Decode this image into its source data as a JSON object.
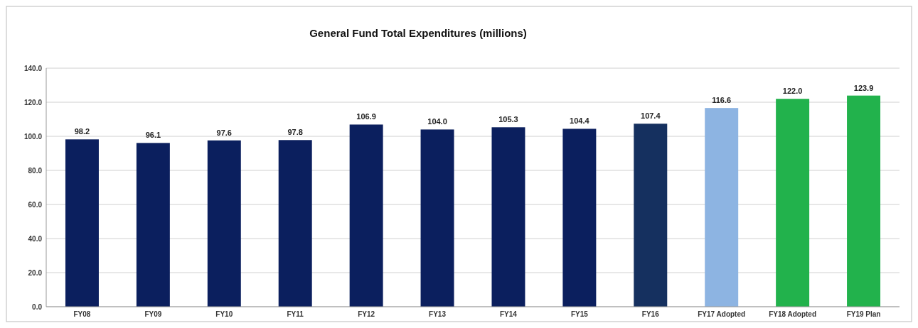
{
  "chart_data": {
    "type": "bar",
    "title": "General Fund Total Expenditures  (millions)",
    "categories": [
      "FY08",
      "FY09",
      "FY10",
      "FY11",
      "FY12",
      "FY13",
      "FY14",
      "FY15",
      "FY16",
      "FY17 Adopted",
      "FY18 Adopted",
      "FY19 Plan"
    ],
    "values": [
      98.2,
      96.1,
      97.6,
      97.8,
      106.9,
      104.0,
      105.3,
      104.4,
      107.4,
      116.6,
      122.0,
      123.9
    ],
    "value_labels": [
      "98.2",
      "96.1",
      "97.6",
      "97.8",
      "106.9",
      "104.0",
      "105.3",
      "104.4",
      "107.4",
      "116.6",
      "122.0",
      "123.9"
    ],
    "colors": [
      "#0b1f5e",
      "#0b1f5e",
      "#0b1f5e",
      "#0b1f5e",
      "#0b1f5e",
      "#0b1f5e",
      "#0b1f5e",
      "#0b1f5e",
      "#15305f",
      "#8db4e2",
      "#22b24c",
      "#22b24c"
    ],
    "ylim": [
      0,
      140
    ],
    "yticks": [
      {
        "value": 0,
        "label": "0.0"
      },
      {
        "value": 20,
        "label": "20.0"
      },
      {
        "value": 40,
        "label": "40.0"
      },
      {
        "value": 60,
        "label": "60.0"
      },
      {
        "value": 80,
        "label": "80.0"
      },
      {
        "value": 100,
        "label": "100.0"
      },
      {
        "value": 120,
        "label": "120.0"
      },
      {
        "value": 140,
        "label": "140.0"
      }
    ],
    "grid": "y"
  }
}
